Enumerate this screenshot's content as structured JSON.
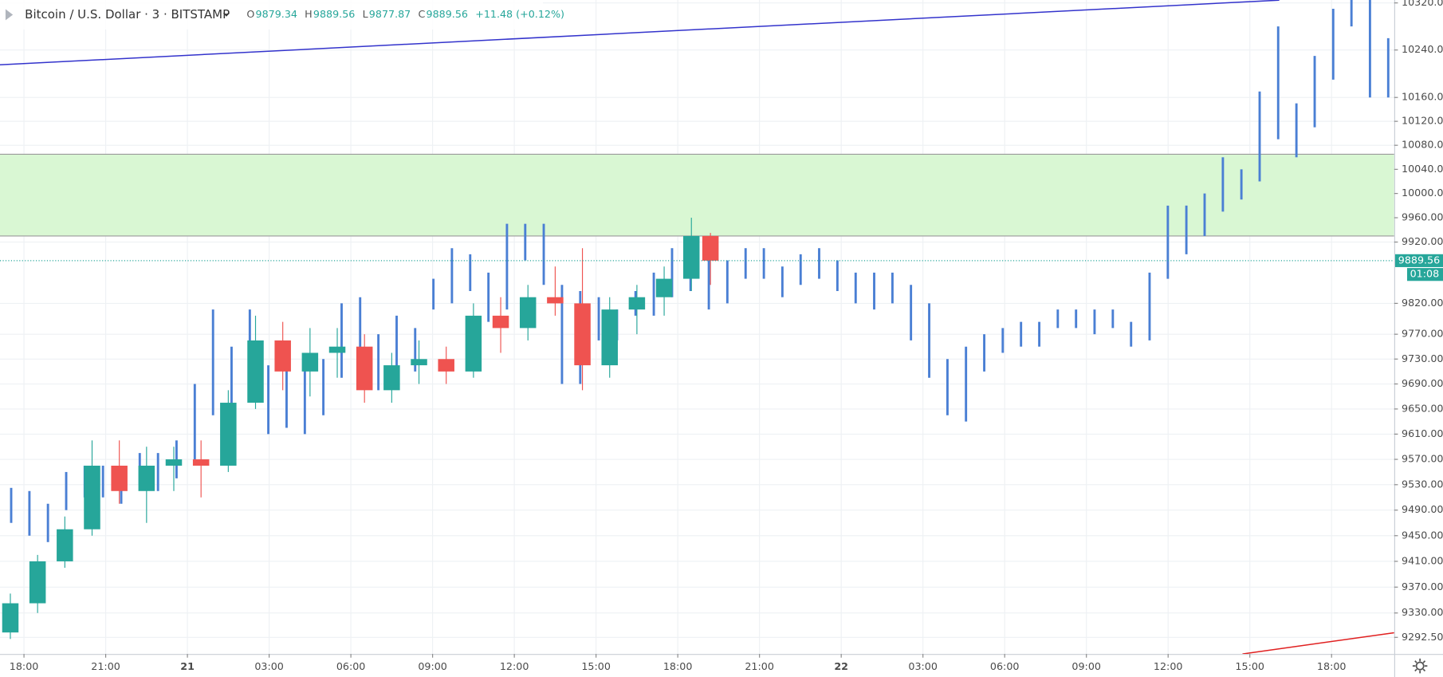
{
  "chart_data": {
    "type": "candlestick",
    "symbol": "Bitcoin / U.S. Dollar · 3 · BITSTAMP",
    "ohlc": [
      {
        "label": "O",
        "value": 9879.34
      },
      {
        "label": "H",
        "value": 9889.56
      },
      {
        "label": "L",
        "value": 9877.87
      },
      {
        "label": "C",
        "value": 9889.56
      }
    ],
    "change": "+11.48 (+0.12%)",
    "countdown": "01:08",
    "log_scale": true,
    "grid": true,
    "up_color": "#26a69a",
    "down_color": "#ef5350",
    "xlim": [
      -0.88,
      50.3
    ],
    "ylim": [
      9267,
      10325
    ],
    "xticks": [
      {
        "value": 0,
        "label": "18:00"
      },
      {
        "value": 3,
        "label": "21:00"
      },
      {
        "value": 6,
        "label": "21"
      },
      {
        "value": 9,
        "label": "03:00"
      },
      {
        "value": 12,
        "label": "06:00"
      },
      {
        "value": 15,
        "label": "09:00"
      },
      {
        "value": 18,
        "label": "12:00"
      },
      {
        "value": 21,
        "label": "15:00"
      },
      {
        "value": 24,
        "label": "18:00"
      },
      {
        "value": 27,
        "label": "21:00"
      },
      {
        "value": 30,
        "label": "22"
      },
      {
        "value": 33,
        "label": "03:00"
      },
      {
        "value": 36,
        "label": "06:00"
      },
      {
        "value": 39,
        "label": "09:00"
      },
      {
        "value": 42,
        "label": "12:00"
      },
      {
        "value": 45,
        "label": "15:00"
      },
      {
        "value": 48,
        "label": "18:00"
      }
    ],
    "yticks": [
      {
        "value": 10320,
        "label": "10320.00"
      },
      {
        "value": 10240,
        "label": "10240.00"
      },
      {
        "value": 10160,
        "label": "10160.00"
      },
      {
        "value": 10120,
        "label": "10120.00"
      },
      {
        "value": 10080,
        "label": "10080.00"
      },
      {
        "value": 10040,
        "label": "10040.00"
      },
      {
        "value": 10000,
        "label": "10000.00"
      },
      {
        "value": 9960,
        "label": "9960.00"
      },
      {
        "value": 9920,
        "label": "9920.00"
      },
      {
        "value": 9820,
        "label": "9820.00"
      },
      {
        "value": 9770,
        "label": "9770.00"
      },
      {
        "value": 9730,
        "label": "9730.00"
      },
      {
        "value": 9690,
        "label": "9690.00"
      },
      {
        "value": 9650,
        "label": "9650.00"
      },
      {
        "value": 9610,
        "label": "9610.00"
      },
      {
        "value": 9570,
        "label": "9570.00"
      },
      {
        "value": 9530,
        "label": "9530.00"
      },
      {
        "value": 9490,
        "label": "9490.00"
      },
      {
        "value": 9450,
        "label": "9450.00"
      },
      {
        "value": 9410,
        "label": "9410.00"
      },
      {
        "value": 9370,
        "label": "9370.00"
      },
      {
        "value": 9330,
        "label": "9330.00"
      },
      {
        "value": 9292.5,
        "label": "9292.50"
      }
    ],
    "candles": {
      "x": [
        -0.5,
        0.5,
        1.5,
        2.5,
        3.5,
        4.5,
        5.5,
        6.5,
        7.5,
        8.5,
        9.5,
        10.5,
        11.5,
        12.5,
        13.5,
        14.5,
        15.5,
        16.5,
        17.5,
        18.5,
        19.5,
        20.5,
        21.5,
        22.5,
        23.5,
        24.5,
        25.2
      ],
      "open": [
        9300,
        9345,
        9410,
        9460,
        9560,
        9520,
        9560,
        9570,
        9560,
        9660,
        9760,
        9710,
        9740,
        9750,
        9680,
        9720,
        9730,
        9710,
        9800,
        9780,
        9830,
        9820,
        9720,
        9810,
        9830,
        9860,
        9930
      ],
      "high": [
        9360,
        9420,
        9480,
        9600,
        9600,
        9590,
        9590,
        9600,
        9680,
        9800,
        9790,
        9780,
        9780,
        9770,
        9740,
        9760,
        9750,
        9820,
        9830,
        9850,
        9880,
        9910,
        9830,
        9850,
        9880,
        9960,
        9935
      ],
      "low": [
        9290,
        9330,
        9400,
        9450,
        9500,
        9470,
        9520,
        9510,
        9550,
        9650,
        9680,
        9670,
        9700,
        9660,
        9660,
        9690,
        9690,
        9700,
        9740,
        9760,
        9800,
        9680,
        9700,
        9770,
        9800,
        9840,
        9850
      ],
      "close": [
        9345,
        9410,
        9460,
        9560,
        9520,
        9560,
        9570,
        9560,
        9660,
        9760,
        9710,
        9740,
        9750,
        9680,
        9720,
        9730,
        9710,
        9800,
        9780,
        9830,
        9820,
        9720,
        9810,
        9830,
        9860,
        9930,
        9889.56
      ]
    },
    "bars_pattern": {
      "color": "#4a7fd4",
      "x": [
        -0.47,
        0.2,
        0.88,
        1.55,
        2.23,
        2.9,
        3.57,
        4.25,
        4.92,
        5.6,
        6.27,
        6.94,
        7.62,
        8.29,
        8.97,
        9.64,
        10.31,
        10.99,
        11.66,
        12.34,
        13.01,
        13.68,
        14.36,
        15.03,
        15.71,
        16.38,
        17.05,
        17.73,
        18.4,
        19.08,
        19.75,
        20.42,
        21.1,
        21.77,
        22.45,
        23.12,
        23.79,
        24.47,
        25.14,
        25.82,
        26.49,
        27.16,
        27.84,
        28.51,
        29.19,
        29.86,
        30.53,
        31.21,
        31.88,
        32.56,
        33.23,
        33.9,
        34.58,
        35.25,
        35.93,
        36.6,
        37.27,
        37.95,
        38.62,
        39.3,
        39.97,
        40.64,
        41.32,
        41.99,
        42.67,
        43.34,
        44.01,
        44.69,
        45.36,
        46.04,
        46.71,
        47.38,
        48.06,
        48.73,
        49.41,
        50.08
      ],
      "high": [
        9525,
        9520,
        9500,
        9550,
        9560,
        9560,
        9560,
        9580,
        9580,
        9600,
        9690,
        9810,
        9750,
        9810,
        9720,
        9740,
        9720,
        9730,
        9820,
        9830,
        9770,
        9800,
        9780,
        9860,
        9910,
        9900,
        9870,
        9950,
        9950,
        9950,
        9850,
        9840,
        9830,
        9810,
        9840,
        9870,
        9910,
        9900,
        9900,
        9890,
        9910,
        9910,
        9880,
        9900,
        9910,
        9890,
        9870,
        9870,
        9870,
        9850,
        9820,
        9730,
        9750,
        9770,
        9780,
        9790,
        9790,
        9810,
        9810,
        9810,
        9810,
        9790,
        9870,
        9980,
        9980,
        10000,
        10060,
        10040,
        10170,
        10280,
        10150,
        10230,
        10310,
        10330,
        10330,
        10260
      ],
      "low": [
        9470,
        9450,
        9440,
        9490,
        9510,
        9510,
        9500,
        9530,
        9520,
        9540,
        9570,
        9640,
        9650,
        9700,
        9610,
        9620,
        9610,
        9640,
        9700,
        9710,
        9680,
        9700,
        9710,
        9810,
        9820,
        9840,
        9790,
        9810,
        9890,
        9850,
        9690,
        9690,
        9760,
        9760,
        9800,
        9800,
        9830,
        9840,
        9810,
        9820,
        9860,
        9860,
        9830,
        9850,
        9860,
        9840,
        9820,
        9810,
        9820,
        9760,
        9700,
        9640,
        9630,
        9710,
        9740,
        9750,
        9750,
        9780,
        9780,
        9770,
        9780,
        9750,
        9760,
        9860,
        9900,
        9930,
        9970,
        9990,
        10020,
        10090,
        10060,
        10110,
        10190,
        10280,
        10160,
        10160
      ]
    },
    "zone": {
      "low": 9930,
      "high": 10065,
      "color": "#d9f7d3"
    },
    "trend_lines": [
      {
        "color": "#3333cc",
        "x": [
          -0.88,
          46.08
        ],
        "y": [
          10215,
          10324.7
        ]
      },
      {
        "color": "#e02020",
        "x": [
          44.73,
          50.3
        ],
        "y": [
          9267,
          9299.6
        ]
      }
    ]
  }
}
